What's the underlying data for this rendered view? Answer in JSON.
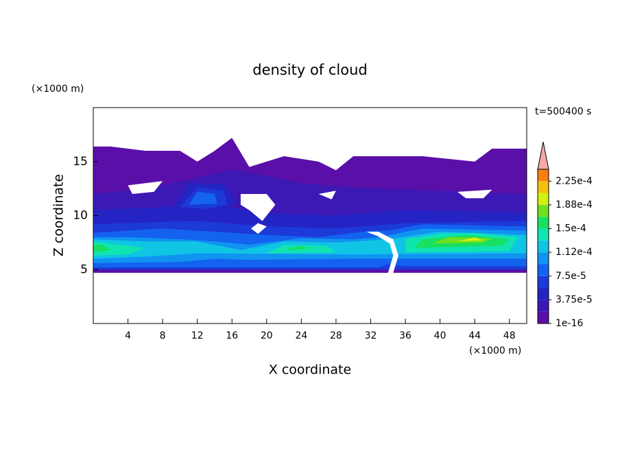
{
  "chart_data": {
    "type": "contour",
    "title": "density of cloud",
    "x_label": "X coordinate",
    "y_label": "Z coordinate",
    "x_unit": "(×1000 m)",
    "y_unit": "(×1000 m)",
    "time_label": "t=500400 s",
    "xlim": [
      0,
      50
    ],
    "xticks": [
      4,
      8,
      12,
      16,
      20,
      24,
      28,
      32,
      36,
      40,
      44,
      48
    ],
    "ylim": [
      0,
      20
    ],
    "yticks": [
      5,
      10,
      15
    ],
    "colorbar": {
      "lim": [
        0,
        0.00024375
      ],
      "ticks": [
        {
          "value": 1e-16,
          "label": "1e-16"
        },
        {
          "value": 3.75e-05,
          "label": "3.75e-5"
        },
        {
          "value": 7.5e-05,
          "label": "7.5e-5"
        },
        {
          "value": 0.0001125,
          "label": "1.12e-4"
        },
        {
          "value": 0.00015,
          "label": "1.5e-4"
        },
        {
          "value": 0.0001875,
          "label": "1.88e-4"
        },
        {
          "value": 0.000225,
          "label": "2.25e-4"
        }
      ],
      "colors": [
        "#5a10a8",
        "#3c18b4",
        "#2424c4",
        "#1c3ad8",
        "#1462f0",
        "#1094f0",
        "#10c4e4",
        "#10e4b0",
        "#18e060",
        "#70e020",
        "#d4f010",
        "#f4c010",
        "#f48010",
        "#f04010",
        "#e01414"
      ],
      "extend_color": "#f4a8a8"
    }
  }
}
